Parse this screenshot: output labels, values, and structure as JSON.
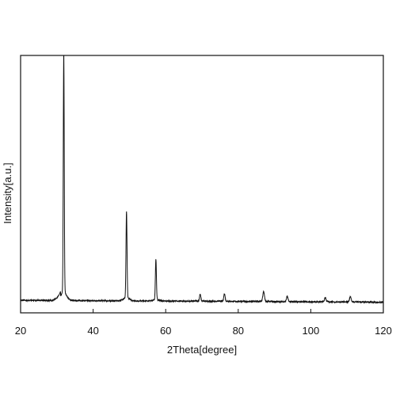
{
  "chart_data": {
    "type": "line",
    "title": "",
    "xlabel": "2Theta[degree]",
    "ylabel": "Intensity[a.u.]",
    "xlim": [
      20,
      120
    ],
    "ylim": [
      0,
      100
    ],
    "x_ticks": [
      20,
      40,
      60,
      80,
      100,
      120
    ],
    "y_ticks_shown": false,
    "grid": false,
    "legend": "none",
    "color": "#111111",
    "baseline": {
      "start_level": 1.6,
      "end_level": 0.8,
      "noise": 0.5
    },
    "shoulder": {
      "from": 28.8,
      "to": 31.0,
      "rise": 1.8
    },
    "peaks": [
      {
        "x": 31.9,
        "height": 100,
        "width": 0.13
      },
      {
        "x": 49.2,
        "height": 36,
        "width": 0.14
      },
      {
        "x": 57.3,
        "height": 17,
        "width": 0.14
      },
      {
        "x": 69.5,
        "height": 2.8,
        "width": 0.18
      },
      {
        "x": 76.2,
        "height": 3.2,
        "width": 0.18
      },
      {
        "x": 87.0,
        "height": 4.0,
        "width": 0.22
      },
      {
        "x": 93.5,
        "height": 2.2,
        "width": 0.2
      },
      {
        "x": 104.0,
        "height": 1.8,
        "width": 0.2
      },
      {
        "x": 110.9,
        "height": 2.2,
        "width": 0.22
      }
    ]
  }
}
